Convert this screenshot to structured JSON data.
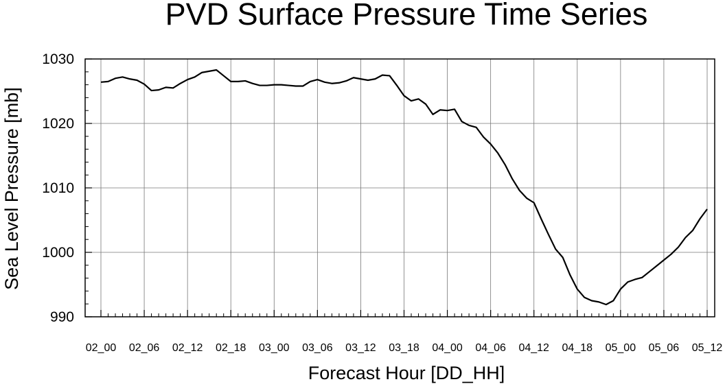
{
  "chart_data": {
    "type": "line",
    "title": "PVD Surface Pressure Time Series",
    "xlabel": "Forecast Hour [DD_HH]",
    "ylabel": "Sea Level Pressure [mb]",
    "ylim": [
      990,
      1030
    ],
    "yticks": [
      990,
      1000,
      1010,
      1020,
      1030
    ],
    "xticks": [
      "02_00",
      "02_06",
      "02_12",
      "02_18",
      "03_00",
      "03_06",
      "03_12",
      "03_18",
      "04_00",
      "04_06",
      "04_12",
      "04_18",
      "05_00",
      "05_06",
      "05_12"
    ],
    "x_interval_hours": 1,
    "grid": true,
    "series": [
      {
        "values": [
          1026.4,
          1026.5,
          1027.0,
          1027.2,
          1026.9,
          1026.7,
          1026.1,
          1025.1,
          1025.2,
          1025.6,
          1025.5,
          1026.2,
          1026.8,
          1027.2,
          1027.9,
          1028.1,
          1028.3,
          1027.4,
          1026.5,
          1026.5,
          1026.6,
          1026.2,
          1025.9,
          1025.9,
          1026.0,
          1026.0,
          1025.9,
          1025.8,
          1025.8,
          1026.5,
          1026.8,
          1026.4,
          1026.2,
          1026.3,
          1026.6,
          1027.1,
          1026.9,
          1026.7,
          1026.9,
          1027.5,
          1027.4,
          1025.9,
          1024.3,
          1023.5,
          1023.8,
          1023.0,
          1021.4,
          1022.1,
          1022.0,
          1022.2,
          1020.3,
          1019.7,
          1019.4,
          1017.9,
          1016.8,
          1015.4,
          1013.6,
          1011.4,
          1009.6,
          1008.4,
          1007.7,
          1005.2,
          1002.8,
          1000.5,
          999.2,
          996.5,
          994.3,
          993.0,
          992.5,
          992.3,
          991.9,
          992.5,
          994.3,
          995.4,
          995.8,
          996.1,
          997.0,
          997.9,
          998.8,
          999.7,
          1000.8,
          1002.3,
          1003.4,
          1005.2,
          1006.7
        ]
      }
    ]
  }
}
